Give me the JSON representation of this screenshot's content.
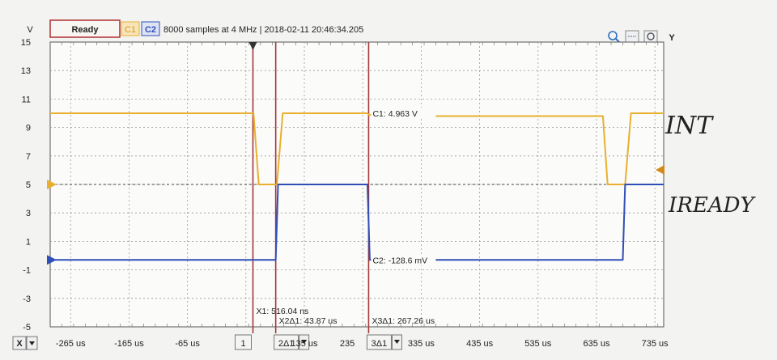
{
  "header": {
    "status": "Ready",
    "ch1_label": "C1",
    "ch2_label": "C2",
    "info": "8000 samples at 4 MHz | 2018-02-11 20:46:34.205",
    "y_button": "Y",
    "x_button": "X"
  },
  "chart_data": {
    "type": "line",
    "ylabel": "V",
    "xlim": [
      -300,
      750
    ],
    "ylim": [
      -5,
      15
    ],
    "x_ticks": [
      -265,
      -165,
      -65,
      135,
      335,
      435,
      535,
      635,
      735
    ],
    "x_tick_labels": [
      "-265 us",
      "-165 us",
      "-65 us",
      "135 us",
      "335 us",
      "435 us",
      "535 us",
      "635 us",
      "735 us"
    ],
    "x_partial_tick_label": "235",
    "y_ticks": [
      15,
      13,
      11,
      9,
      7,
      5,
      3,
      1,
      -1,
      -3,
      -5
    ],
    "y_tick_labels": [
      "15",
      "13",
      "11",
      "9",
      "7",
      "5",
      "3",
      "1",
      "-1",
      "-3",
      "-5"
    ],
    "series": [
      {
        "name": "C1",
        "color": "#e9b030",
        "x": [
          -300,
          48,
          57,
          88,
          98,
          243,
          245,
          262,
          646,
          654,
          684,
          694,
          750
        ],
        "y": [
          10,
          10,
          5,
          5,
          10,
          10,
          9.9,
          9.8,
          9.8,
          5,
          5,
          10,
          10
        ]
      },
      {
        "name": "C2",
        "color": "#2f4fb8",
        "x": [
          -300,
          86,
          90,
          243,
          247,
          262,
          680,
          684,
          750
        ],
        "y": [
          -0.3,
          -0.3,
          5,
          5,
          -0.3,
          -0.3,
          -0.3,
          5,
          5
        ]
      }
    ],
    "reference_level": 5,
    "cursors": [
      {
        "name": "X1",
        "x": 47,
        "readout": "X1: 516.04 ns",
        "label": "1"
      },
      {
        "name": "X2",
        "x": 86,
        "readout": "X2Δ1: 43.87 us",
        "label": "2Δ1"
      },
      {
        "name": "X3",
        "x": 245,
        "readout": "X3Δ1: 267.26 us",
        "label": "3Δ1"
      }
    ],
    "markers": [
      {
        "text": "C1: 4.963 V",
        "x": 245,
        "y": 10
      },
      {
        "text": "C2: -128.6 mV",
        "x": 245,
        "y": -0.3
      }
    ],
    "annotations": [
      "INT",
      "IREADY"
    ],
    "grid": true
  },
  "colors": {
    "c1": "#e9b030",
    "c2": "#2f4fb8",
    "cursor": "#a23a3a",
    "status_border": "#b03030"
  }
}
